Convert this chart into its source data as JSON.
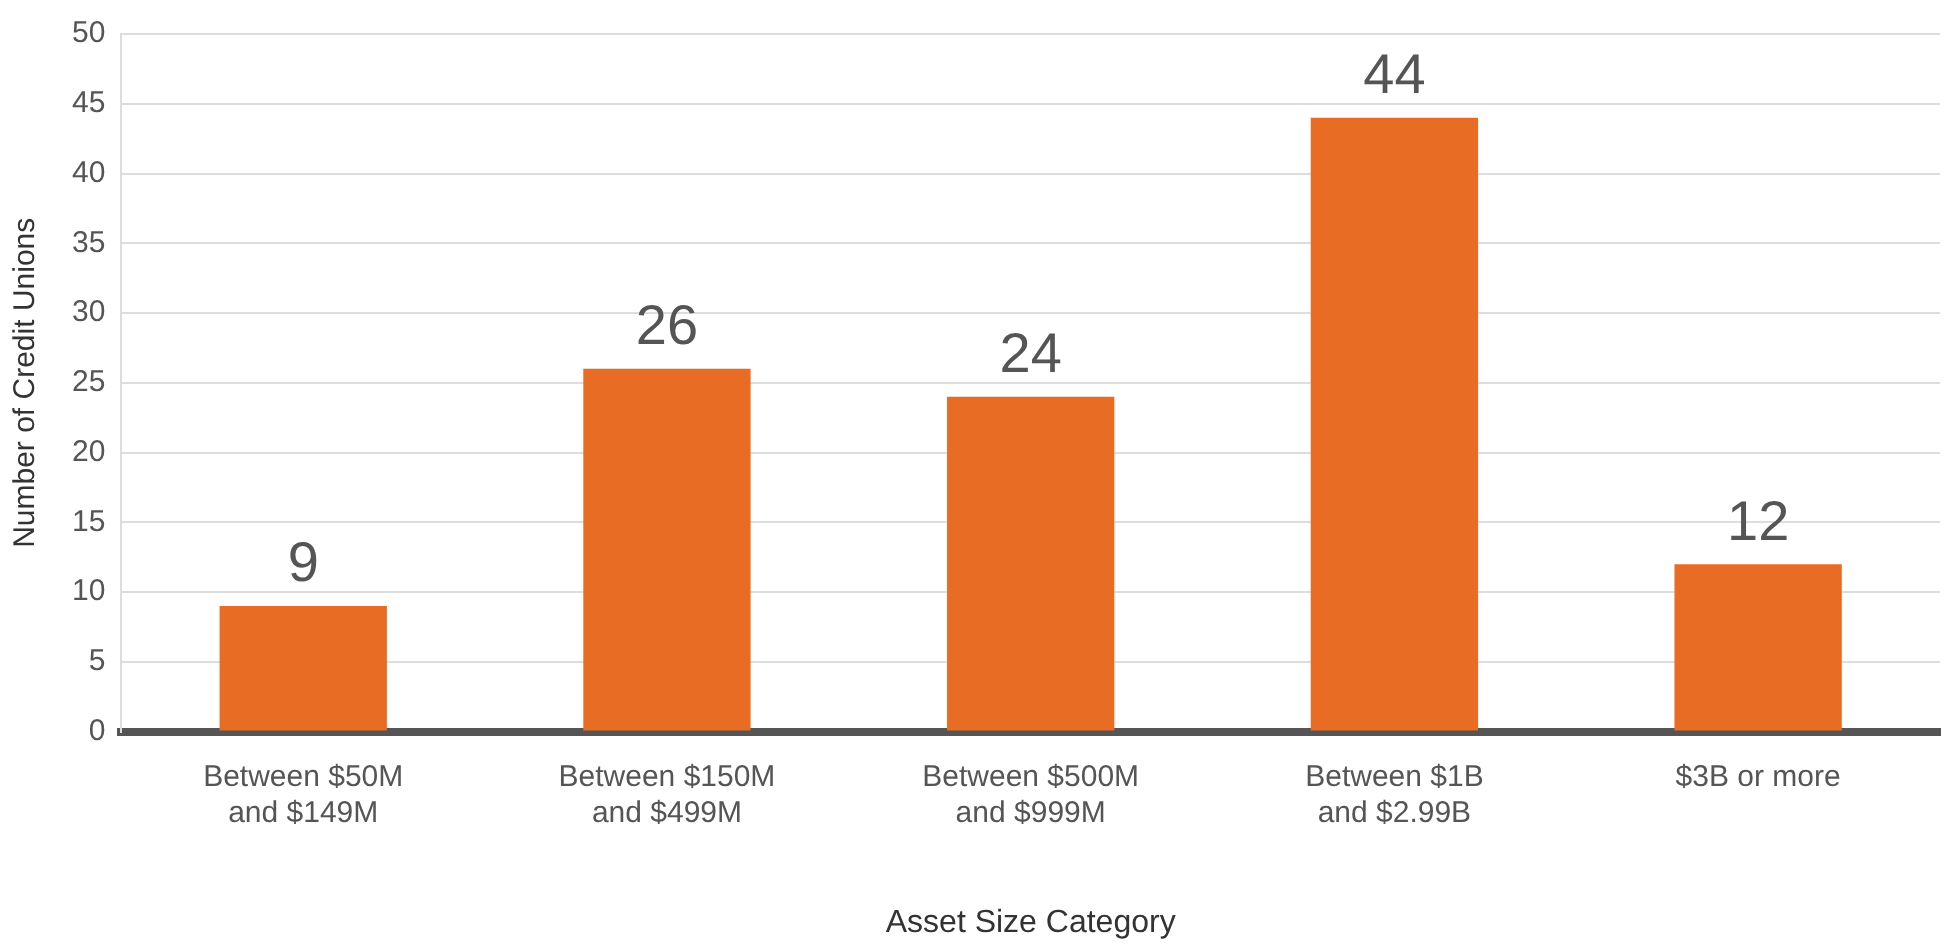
{
  "chart_data": {
    "type": "bar",
    "xlabel": "Asset Size Category",
    "ylabel": "Number of Credit Unions",
    "categories": [
      "Between $50M\nand $149M",
      "Between $150M\nand $499M",
      "Between $500M\nand $999M",
      "Between $1B\nand $2.99B",
      "$3B or more"
    ],
    "values": [
      9,
      26,
      24,
      44,
      12
    ],
    "color": "#e86c23",
    "ylim": [
      0,
      50
    ],
    "yticks": [
      0,
      5,
      10,
      15,
      20,
      25,
      30,
      35,
      40,
      45,
      50
    ],
    "grid": "y",
    "data_labels": true,
    "legend": false
  }
}
